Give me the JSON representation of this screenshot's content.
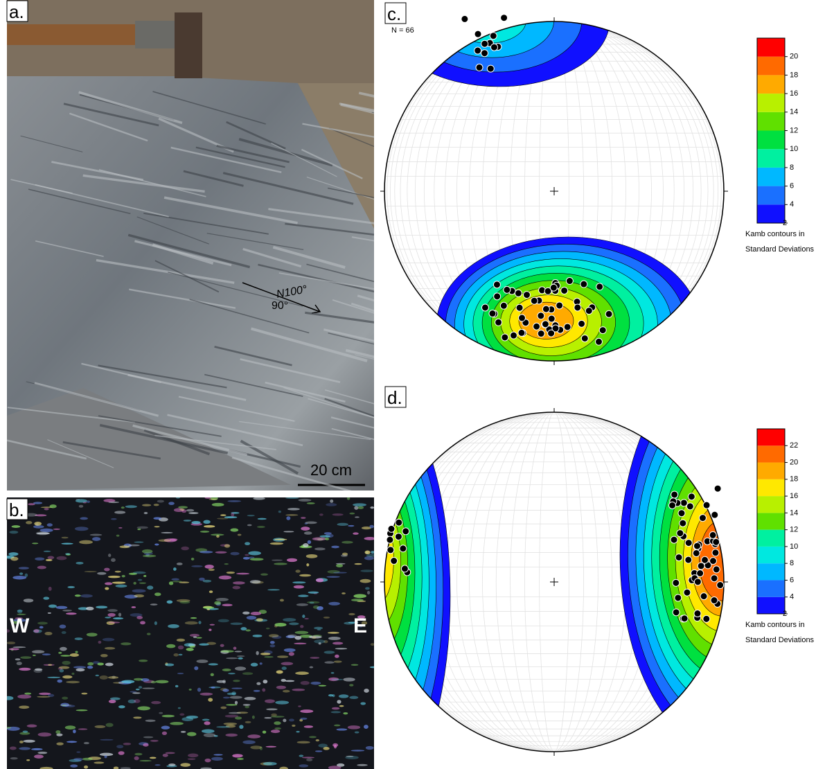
{
  "panels": {
    "a": {
      "label": "a.",
      "strike": "N100°",
      "dip": "90°",
      "scale": "20 cm"
    },
    "b": {
      "label": "b.",
      "west": "W",
      "east": "E"
    },
    "c": {
      "label": "c.",
      "count": "N = 66",
      "colorbar_ticks": [
        2,
        4,
        6,
        8,
        10,
        12,
        14,
        16,
        18,
        20
      ],
      "caption": [
        "Kamb contours in",
        "Standard Deviations"
      ]
    },
    "d": {
      "label": "d.",
      "colorbar_ticks": [
        2,
        4,
        6,
        8,
        10,
        12,
        14,
        16,
        18,
        20,
        22
      ],
      "caption": [
        "Kamb contours in",
        "Standard Deviations"
      ]
    }
  }
}
